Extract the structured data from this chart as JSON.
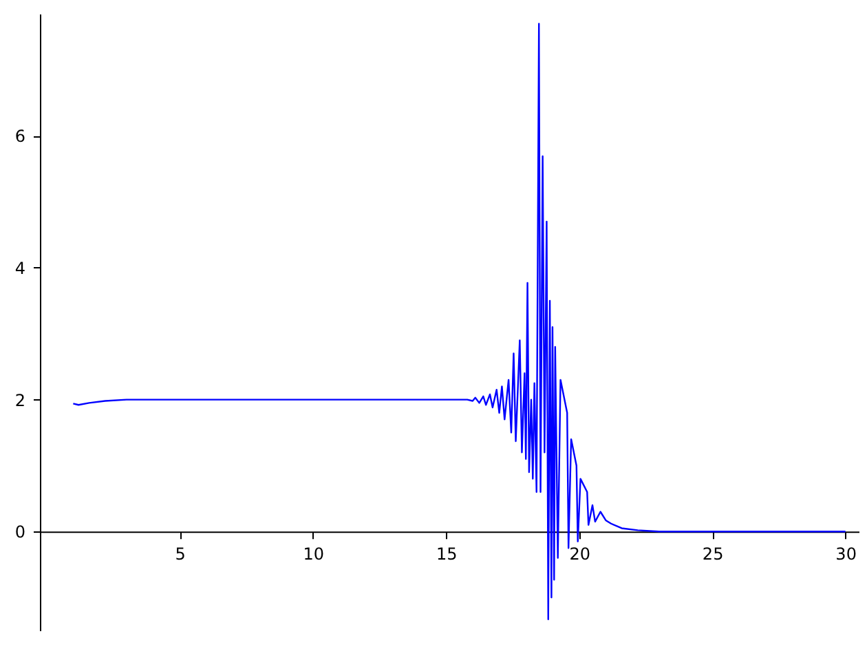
{
  "chart_data": {
    "type": "line",
    "x": [
      1.0,
      1.2,
      1.6,
      2.2,
      3.0,
      10,
      15.0,
      15.8,
      16.0,
      16.1,
      16.25,
      16.4,
      16.5,
      16.65,
      16.75,
      16.9,
      17.0,
      17.1,
      17.2,
      17.35,
      17.45,
      17.54,
      17.62,
      17.77,
      17.85,
      17.95,
      18.0,
      18.06,
      18.12,
      18.2,
      18.26,
      18.32,
      18.4,
      18.49,
      18.55,
      18.63,
      18.7,
      18.78,
      18.84,
      18.9,
      18.96,
      19.0,
      19.06,
      19.1,
      19.2,
      19.3,
      19.55,
      19.6,
      19.7,
      19.9,
      19.95,
      20.05,
      20.3,
      20.35,
      20.5,
      20.6,
      20.8,
      21.0,
      21.2,
      21.6,
      22.2,
      23,
      30
    ],
    "series": [
      {
        "color": "#0000ff",
        "values": [
          1.94,
          1.92,
          1.95,
          1.98,
          2.0,
          2.0,
          2.0,
          2.0,
          1.98,
          2.03,
          1.95,
          2.05,
          1.92,
          2.08,
          1.88,
          2.15,
          1.8,
          2.2,
          1.7,
          2.3,
          1.5,
          2.7,
          1.37,
          2.9,
          1.2,
          2.4,
          1.1,
          3.77,
          0.9,
          2.0,
          0.8,
          2.25,
          0.6,
          7.7,
          0.6,
          5.69,
          1.2,
          4.7,
          -1.33,
          3.5,
          -1.0,
          3.1,
          -0.73,
          2.8,
          -0.4,
          2.3,
          1.8,
          -0.25,
          1.4,
          1.0,
          -0.15,
          0.8,
          0.6,
          0.1,
          0.4,
          0.15,
          0.3,
          0.17,
          0.12,
          0.05,
          0.02,
          0.0,
          0.0
        ]
      }
    ],
    "xlim": [
      -0.25,
      30.5
    ],
    "ylim": [
      -1.5,
      7.85
    ],
    "xticks": [
      5,
      10,
      15,
      20,
      25,
      30
    ],
    "yticks": [
      0,
      2,
      4,
      6
    ],
    "grid": false,
    "marker": "none",
    "line_style": "solid"
  }
}
